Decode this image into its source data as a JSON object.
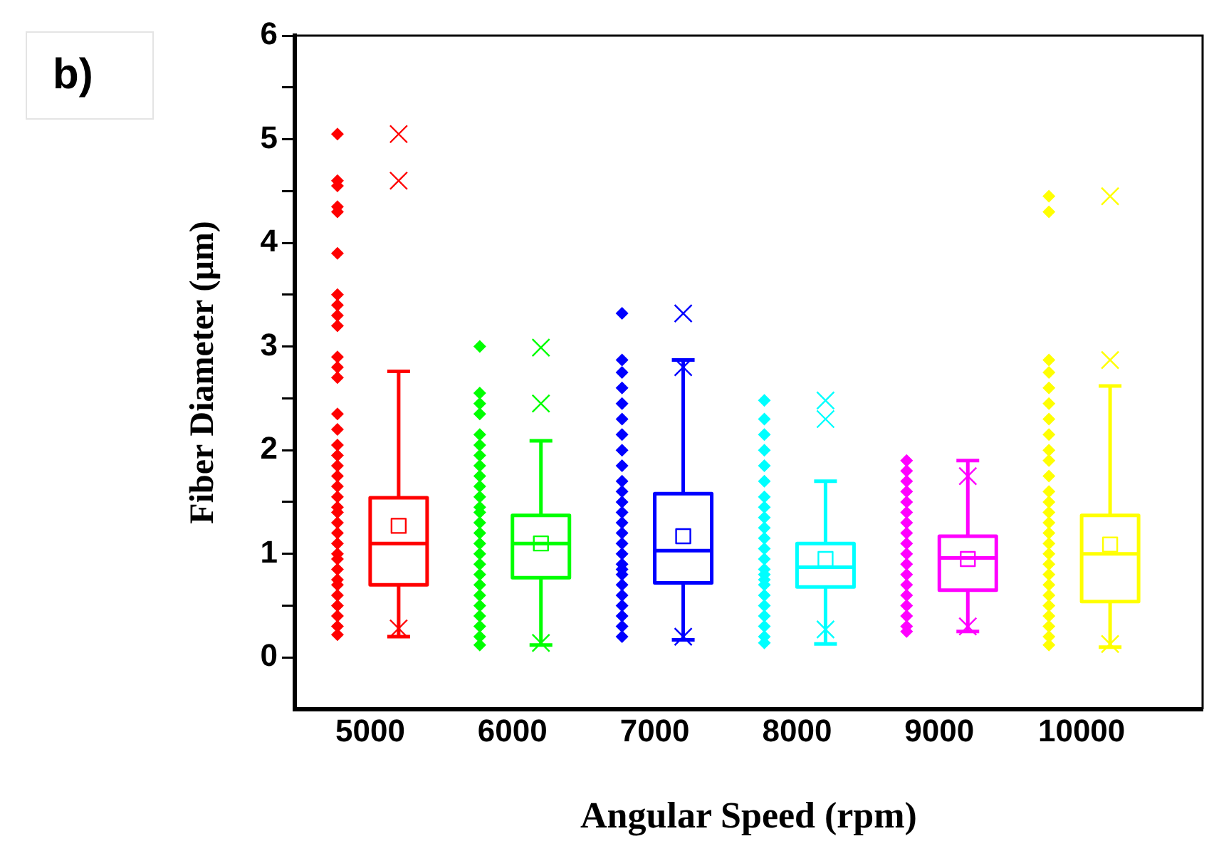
{
  "chart_data": {
    "type": "box",
    "xlabel": "Angular Speed (rpm)",
    "ylabel": "Fiber Diameter (μm)",
    "annotations": [
      "b)"
    ],
    "x": [
      5200,
      6200,
      7200,
      8200,
      9200,
      10200
    ],
    "colors": [
      "#ff0000",
      "#00ff00",
      "#0000ff",
      "#00ffff",
      "#ff00ff",
      "#ffff00"
    ],
    "boxes": [
      {
        "low": 0.2,
        "q1": 0.7,
        "median": 1.1,
        "q3": 1.54,
        "high": 2.76,
        "mean": 1.27,
        "outliers": [
          5.05,
          4.6,
          0.28
        ]
      },
      {
        "low": 0.12,
        "q1": 0.77,
        "median": 1.1,
        "q3": 1.37,
        "high": 2.09,
        "mean": 1.1,
        "outliers": [
          2.99,
          2.45,
          0.14
        ]
      },
      {
        "low": 0.17,
        "q1": 0.72,
        "median": 1.03,
        "q3": 1.58,
        "high": 2.87,
        "mean": 1.17,
        "outliers": [
          3.32,
          2.8,
          0.2
        ]
      },
      {
        "low": 0.13,
        "q1": 0.68,
        "median": 0.87,
        "q3": 1.1,
        "high": 1.7,
        "mean": 0.95,
        "outliers": [
          2.48,
          2.3,
          0.27
        ]
      },
      {
        "low": 0.25,
        "q1": 0.65,
        "median": 0.96,
        "q3": 1.17,
        "high": 1.9,
        "mean": 0.95,
        "outliers": [
          1.75,
          0.3
        ]
      },
      {
        "low": 0.1,
        "q1": 0.54,
        "median": 1.0,
        "q3": 1.37,
        "high": 2.62,
        "mean": 1.09,
        "outliers": [
          4.45,
          2.87,
          0.13
        ]
      }
    ],
    "series": [
      {
        "type": "scatter",
        "color": "#ff0000",
        "x": [
          4770,
          4770,
          4770,
          4770,
          4770,
          4770,
          4770,
          4770,
          4770,
          4770,
          4770,
          4770,
          4770,
          4770,
          4770,
          4770,
          4770,
          4770,
          4770,
          4770,
          4770,
          4770,
          4770,
          4770,
          4770,
          4770,
          4770,
          4770,
          4770,
          4770,
          4770,
          4770,
          4770,
          4770,
          4770,
          4770
        ],
        "values": [
          5.05,
          4.6,
          4.55,
          4.35,
          4.3,
          3.9,
          3.5,
          3.4,
          3.3,
          3.2,
          2.9,
          2.8,
          2.7,
          2.35,
          2.2,
          2.05,
          1.95,
          1.85,
          1.75,
          1.65,
          1.55,
          1.45,
          1.4,
          1.3,
          1.2,
          1.1,
          1.0,
          0.95,
          0.85,
          0.75,
          0.7,
          0.6,
          0.5,
          0.4,
          0.3,
          0.22
        ]
      },
      {
        "type": "scatter",
        "color": "#00ff00",
        "x": [
          5770,
          5770,
          5770,
          5770,
          5770,
          5770,
          5770,
          5770,
          5770,
          5770,
          5770,
          5770,
          5770,
          5770,
          5770,
          5770,
          5770,
          5770,
          5770,
          5770,
          5770,
          5770,
          5770,
          5770,
          5770,
          5770
        ],
        "values": [
          3.0,
          2.55,
          2.45,
          2.35,
          2.15,
          2.05,
          1.95,
          1.85,
          1.75,
          1.65,
          1.55,
          1.45,
          1.4,
          1.3,
          1.2,
          1.1,
          1.0,
          0.9,
          0.8,
          0.7,
          0.6,
          0.5,
          0.4,
          0.3,
          0.2,
          0.12
        ]
      },
      {
        "type": "scatter",
        "color": "#0000ff",
        "x": [
          6770,
          6770,
          6770,
          6770,
          6770,
          6770,
          6770,
          6770,
          6770,
          6770,
          6770,
          6770,
          6770,
          6770,
          6770,
          6770,
          6770,
          6770,
          6770,
          6770,
          6770,
          6770,
          6770,
          6770,
          6770,
          6770
        ],
        "values": [
          3.32,
          2.87,
          2.75,
          2.6,
          2.45,
          2.3,
          2.15,
          2.0,
          1.85,
          1.7,
          1.6,
          1.5,
          1.4,
          1.3,
          1.2,
          1.1,
          1.0,
          0.9,
          0.85,
          0.8,
          0.7,
          0.6,
          0.5,
          0.4,
          0.3,
          0.2
        ]
      },
      {
        "type": "scatter",
        "color": "#00ffff",
        "x": [
          7770,
          7770,
          7770,
          7770,
          7770,
          7770,
          7770,
          7770,
          7770,
          7770,
          7770,
          7770,
          7770,
          7770,
          7770,
          7770,
          7770,
          7770,
          7770,
          7770,
          7770,
          7770,
          7770
        ],
        "values": [
          2.48,
          2.3,
          2.15,
          2.0,
          1.85,
          1.7,
          1.55,
          1.45,
          1.35,
          1.25,
          1.15,
          1.05,
          0.95,
          0.85,
          0.8,
          0.75,
          0.7,
          0.6,
          0.5,
          0.4,
          0.3,
          0.2,
          0.14
        ]
      },
      {
        "type": "scatter",
        "color": "#ff00ff",
        "x": [
          8770,
          8770,
          8770,
          8770,
          8770,
          8770,
          8770,
          8770,
          8770,
          8770,
          8770,
          8770,
          8770,
          8770,
          8770,
          8770,
          8770,
          8770
        ],
        "values": [
          1.9,
          1.8,
          1.7,
          1.6,
          1.5,
          1.4,
          1.3,
          1.2,
          1.1,
          1.0,
          0.9,
          0.8,
          0.7,
          0.6,
          0.5,
          0.4,
          0.3,
          0.25
        ]
      },
      {
        "type": "scatter",
        "color": "#ffff00",
        "x": [
          9770,
          9770,
          9770,
          9770,
          9770,
          9770,
          9770,
          9770,
          9770,
          9770,
          9770,
          9770,
          9770,
          9770,
          9770,
          9770,
          9770,
          9770,
          9770,
          9770,
          9770,
          9770,
          9770,
          9770,
          9770,
          9770,
          9770
        ],
        "values": [
          4.45,
          4.3,
          2.87,
          2.75,
          2.6,
          2.45,
          2.3,
          2.15,
          2.0,
          1.9,
          1.75,
          1.6,
          1.5,
          1.4,
          1.3,
          1.2,
          1.1,
          1.0,
          0.9,
          0.8,
          0.7,
          0.6,
          0.5,
          0.4,
          0.3,
          0.2,
          0.12
        ]
      }
    ],
    "xlim": [
      4470,
      10850
    ],
    "xticks": [
      5000,
      6000,
      7000,
      8000,
      9000,
      10000
    ],
    "ylim": [
      -0.5,
      6
    ],
    "yticks": [
      0,
      {
        "value": 0.5,
        "label": null
      },
      1,
      {
        "value": 1.5,
        "label": null
      },
      2,
      {
        "value": 2.5,
        "label": null
      },
      3,
      {
        "value": 3.5,
        "label": null
      },
      4,
      {
        "value": 4.5,
        "label": null
      },
      5,
      {
        "value": 5.5,
        "label": null
      },
      6
    ],
    "grid": false,
    "marker": "diamond"
  }
}
